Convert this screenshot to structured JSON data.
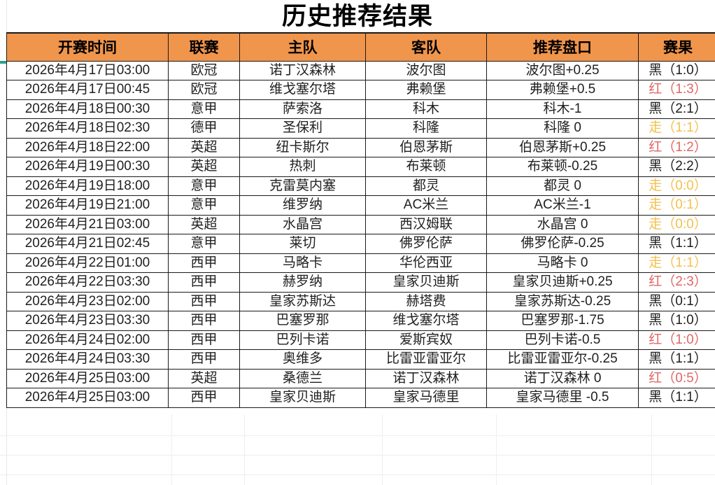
{
  "title": "历史推荐结果",
  "table": {
    "columns": [
      {
        "key": "time",
        "label": "开赛时间"
      },
      {
        "key": "league",
        "label": "联赛"
      },
      {
        "key": "home",
        "label": "主队"
      },
      {
        "key": "away",
        "label": "客队"
      },
      {
        "key": "handicap",
        "label": "推荐盘口"
      },
      {
        "key": "result",
        "label": "赛果"
      }
    ],
    "rows": [
      {
        "time": "2026年4月17日03:00",
        "league": "欧冠",
        "home": "诺丁汉森林",
        "away": "波尔图",
        "handicap": "波尔图+0.25",
        "result": "黑（1:0）",
        "result_type": "black"
      },
      {
        "time": "2026年4月17日00:45",
        "league": "欧冠",
        "home": "维戈塞尔塔",
        "away": "弗赖堡",
        "handicap": "弗赖堡+0.5",
        "result": "红（1:3）",
        "result_type": "red"
      },
      {
        "time": "2026年4月18日00:30",
        "league": "意甲",
        "home": "萨索洛",
        "away": "科木",
        "handicap": "科木-1",
        "result": "黑（2:1）",
        "result_type": "black"
      },
      {
        "time": "2026年4月18日02:30",
        "league": "德甲",
        "home": "圣保利",
        "away": "科隆",
        "handicap": "科隆 0",
        "result": "走（1:1）",
        "result_type": "push"
      },
      {
        "time": "2026年4月18日22:00",
        "league": "英超",
        "home": "纽卡斯尔",
        "away": "伯恩茅斯",
        "handicap": "伯恩茅斯+0.25",
        "result": "红（1:2）",
        "result_type": "red"
      },
      {
        "time": "2026年4月19日00:30",
        "league": "英超",
        "home": "热刺",
        "away": "布莱顿",
        "handicap": "布莱顿-0.25",
        "result": "黑（2:2）",
        "result_type": "black"
      },
      {
        "time": "2026年4月19日18:00",
        "league": "意甲",
        "home": "克雷莫内塞",
        "away": "都灵",
        "handicap": "都灵 0",
        "result": "走（0:0）",
        "result_type": "push"
      },
      {
        "time": "2026年4月19日21:00",
        "league": "意甲",
        "home": "维罗纳",
        "away": "AC米兰",
        "handicap": "AC米兰-1",
        "result": "走（0:1）",
        "result_type": "push"
      },
      {
        "time": "2026年4月21日03:00",
        "league": "英超",
        "home": "水晶宫",
        "away": "西汉姆联",
        "handicap": "水晶宫 0",
        "result": "走（0:0）",
        "result_type": "push"
      },
      {
        "time": "2026年4月21日02:45",
        "league": "意甲",
        "home": "莱切",
        "away": "佛罗伦萨",
        "handicap": "佛罗伦萨-0.25",
        "result": "黑（1:1）",
        "result_type": "black"
      },
      {
        "time": "2026年4月22日01:00",
        "league": "西甲",
        "home": "马略卡",
        "away": "华伦西亚",
        "handicap": "马略卡 0",
        "result": "走（1:1）",
        "result_type": "push"
      },
      {
        "time": "2026年4月22日03:30",
        "league": "西甲",
        "home": "赫罗纳",
        "away": "皇家贝迪斯",
        "handicap": "皇家贝迪斯+0.25",
        "result": "红（2:3）",
        "result_type": "red"
      },
      {
        "time": "2026年4月23日02:00",
        "league": "西甲",
        "home": "皇家苏斯达",
        "away": "赫塔费",
        "handicap": "皇家苏斯达-0.25",
        "result": "黑（0:1）",
        "result_type": "black"
      },
      {
        "time": "2026年4月23日03:30",
        "league": "西甲",
        "home": "巴塞罗那",
        "away": "维戈塞尔塔",
        "handicap": "巴塞罗那-1.75",
        "result": "黑（1:0）",
        "result_type": "black"
      },
      {
        "time": "2026年4月24日02:00",
        "league": "西甲",
        "home": "巴列卡诺",
        "away": "爱斯宾奴",
        "handicap": "巴列卡诺-0.5",
        "result": "红（1:0）",
        "result_type": "red"
      },
      {
        "time": "2026年4月24日03:30",
        "league": "西甲",
        "home": "奥维多",
        "away": "比雷亚雷亚尔",
        "handicap": "比雷亚雷亚尔-0.25",
        "result": "黑（1:1）",
        "result_type": "black"
      },
      {
        "time": "2026年4月25日03:00",
        "league": "英超",
        "home": "桑德兰",
        "away": "诺丁汉森林",
        "handicap": "诺丁汉森林 0",
        "result": "红（0:5）",
        "result_type": "red"
      },
      {
        "time": "2026年4月25日03:00",
        "league": "西甲",
        "home": "皇家贝迪斯",
        "away": "皇家马德里",
        "handicap": "皇家马德里 -0.5",
        "result": "黑（1:1）",
        "result_type": "black"
      }
    ]
  },
  "colors": {
    "header_bg": "#F0954C",
    "border": "#1A1A1A",
    "text": "#1F1F1F",
    "result_red": "#E06666",
    "result_push": "#F2C14E",
    "grid_faint": "#F0EDF3",
    "left_mark_teal": "#2FA08C"
  }
}
